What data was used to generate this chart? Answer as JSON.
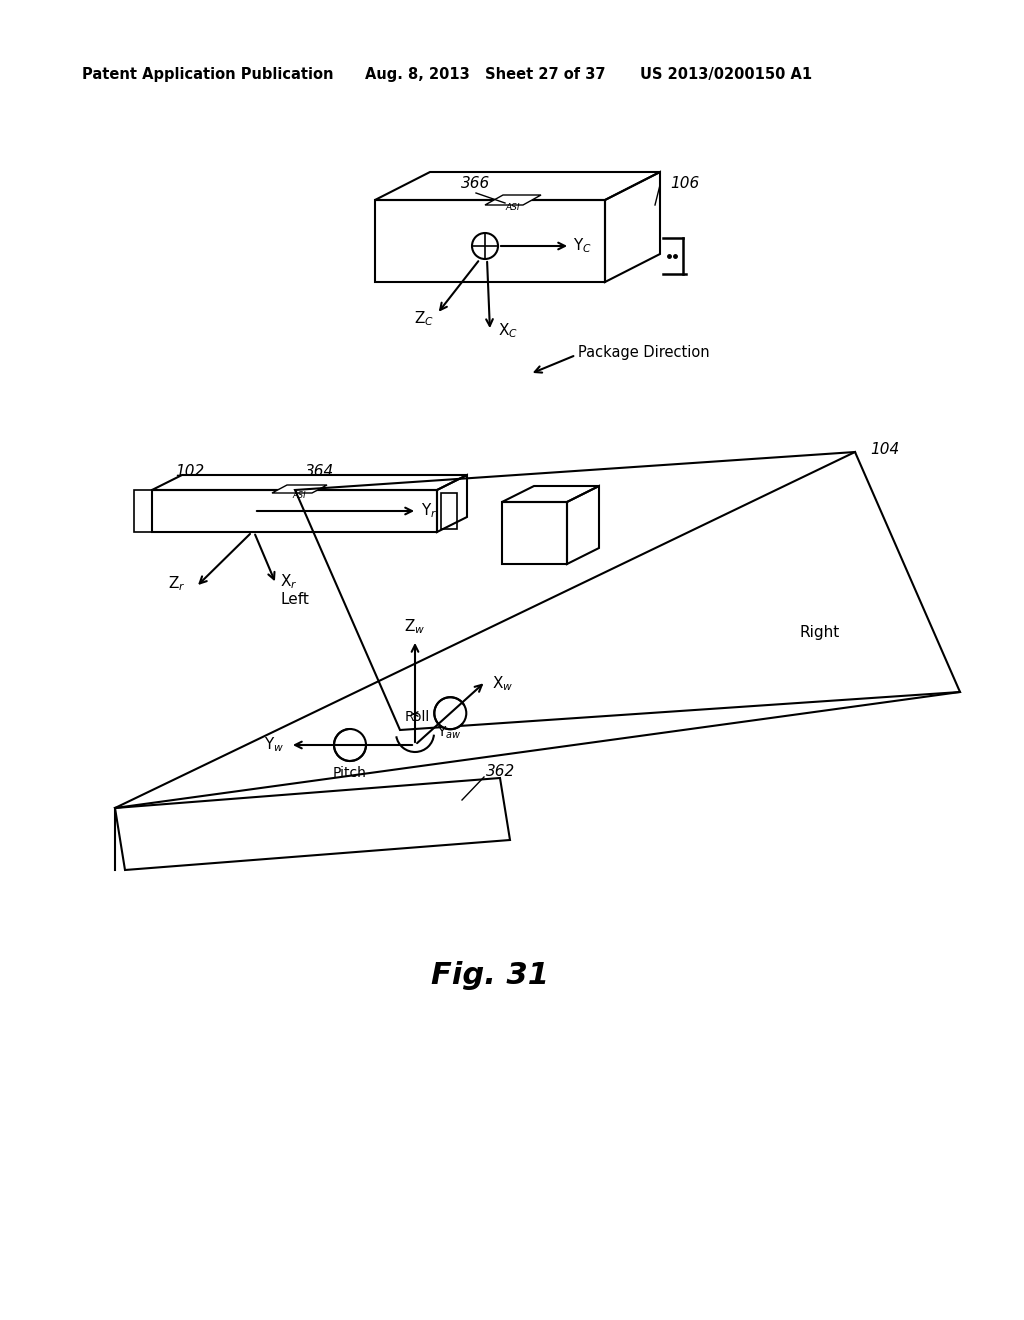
{
  "bg_color": "#ffffff",
  "header_left": "Patent Application Publication",
  "header_mid": "Aug. 8, 2013   Sheet 27 of 37",
  "header_right": "US 2013/0200150 A1",
  "fig_label": "Fig. 31"
}
